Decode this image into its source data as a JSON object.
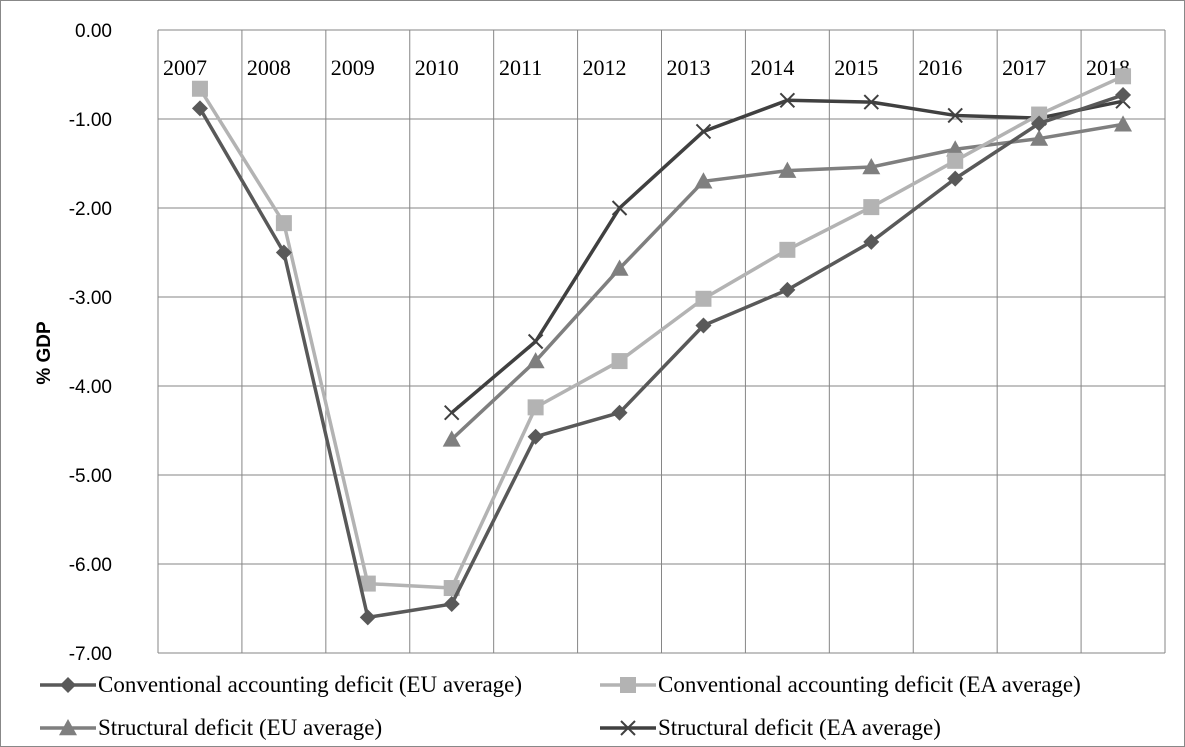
{
  "chart_data": {
    "type": "line",
    "x": [
      "2007",
      "2008",
      "2009",
      "2010",
      "2011",
      "2012",
      "2013",
      "2014",
      "2015",
      "2016",
      "2017",
      "2018"
    ],
    "ylabel": "% GDP",
    "ylim": [
      -7,
      0
    ],
    "ytick_labels": [
      "0.00",
      "-1.00",
      "-2.00",
      "-3.00",
      "-4.00",
      "-5.00",
      "-6.00",
      "-7.00"
    ],
    "grid": true,
    "legend_position": "bottom",
    "series": [
      {
        "name": "Conventional accounting deficit (EU average)",
        "marker": "diamond",
        "color": "#595959",
        "values": [
          -0.88,
          -2.5,
          -6.6,
          -6.45,
          -4.57,
          -4.3,
          -3.32,
          -2.92,
          -2.38,
          -1.67,
          -1.05,
          -0.73
        ]
      },
      {
        "name": "Conventional accounting deficit (EA average)",
        "marker": "square",
        "color": "#b3b3b3",
        "values": [
          -0.66,
          -2.17,
          -6.22,
          -6.27,
          -4.24,
          -3.72,
          -3.02,
          -2.47,
          -1.99,
          -1.47,
          -0.95,
          -0.52
        ]
      },
      {
        "name": "Structural deficit (EU average)",
        "marker": "triangle",
        "color": "#7f7f7f",
        "values": [
          null,
          null,
          null,
          -4.6,
          -3.72,
          -2.68,
          -1.7,
          -1.58,
          -1.54,
          -1.34,
          -1.22,
          -1.06
        ]
      },
      {
        "name": "Structural deficit (EA average)",
        "marker": "x",
        "color": "#404040",
        "values": [
          null,
          null,
          null,
          -4.3,
          -3.5,
          -2.0,
          -1.14,
          -0.79,
          -0.81,
          -0.96,
          -0.99,
          -0.8
        ]
      }
    ]
  }
}
